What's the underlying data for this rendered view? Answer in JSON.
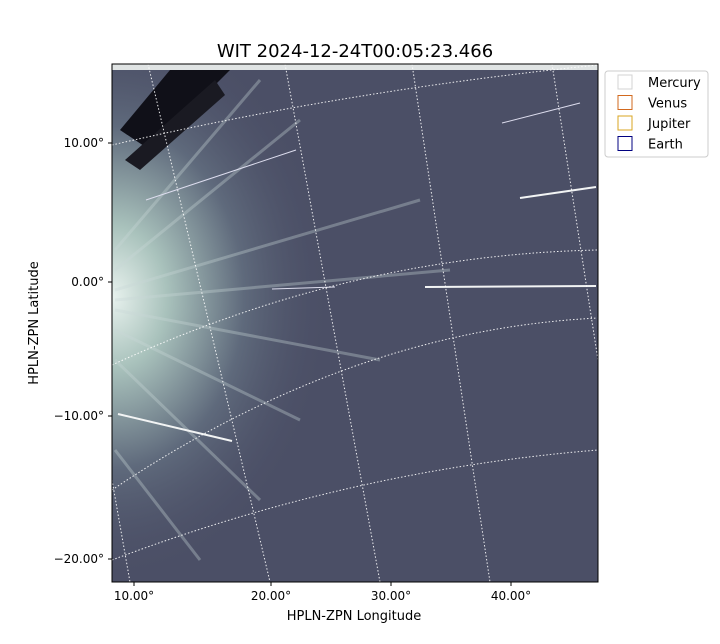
{
  "title": "WIT 2024-12-24T00:05:23.466",
  "x_label": "HPLN-ZPN Longitude",
  "y_label": "HPLN-ZPN Latitude",
  "x_ticks": [
    "10.00°",
    "20.00°",
    "30.00°",
    "40.00°"
  ],
  "y_ticks": [
    "10.00°",
    "0.00°",
    "−10.00°",
    "−20.00°"
  ],
  "legend": [
    {
      "name": "Mercury",
      "color": "#d3d3d3"
    },
    {
      "name": "Venus",
      "color": "#d2691e"
    },
    {
      "name": "Jupiter",
      "color": "#daa520"
    },
    {
      "name": "Earth",
      "color": "#000080"
    }
  ]
}
